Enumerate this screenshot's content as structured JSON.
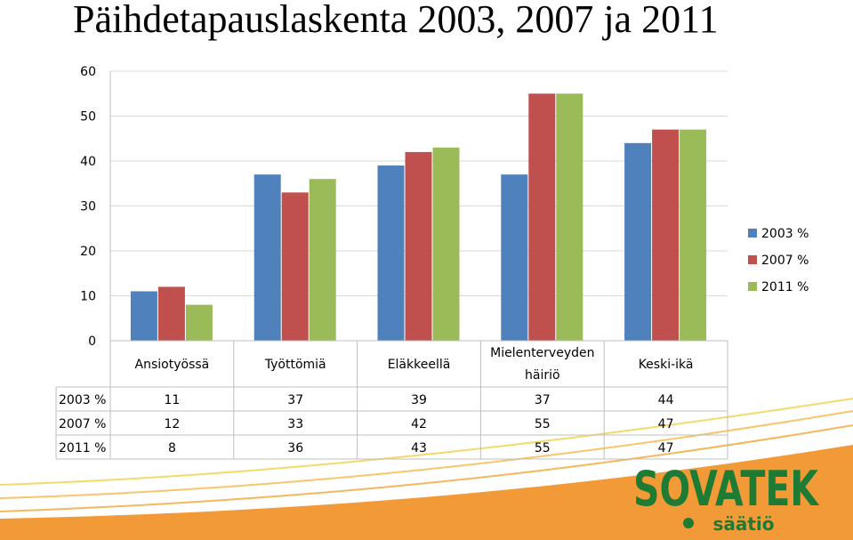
{
  "title": "Päihdetapauslaskenta 2003, 2007 ja 2011",
  "colors": {
    "series": [
      "#4F81BD",
      "#C0504D",
      "#9BBB59"
    ],
    "grid": "#D9D9D9",
    "logo_green": "#1E7B34",
    "swoosh_orange": "#F39A38"
  },
  "chart_data": {
    "type": "bar",
    "categories": [
      "Ansiotyössä",
      "Työttömiä",
      "Eläkkeellä",
      "Mielenterveyden häiriö",
      "Keski-ikä"
    ],
    "series": [
      {
        "name": "2003 %",
        "values": [
          11,
          37,
          39,
          37,
          44
        ]
      },
      {
        "name": "2007 %",
        "values": [
          12,
          33,
          42,
          55,
          47
        ]
      },
      {
        "name": "2011 %",
        "values": [
          8,
          36,
          43,
          55,
          47
        ]
      }
    ],
    "ylim": [
      0,
      60
    ],
    "yticks": [
      "0",
      "10",
      "20",
      "30",
      "40",
      "50",
      "60"
    ],
    "grid": true,
    "legend": "right",
    "data_table": true
  },
  "logo": {
    "name": "SOVATEK",
    "sub": "säätiö"
  }
}
